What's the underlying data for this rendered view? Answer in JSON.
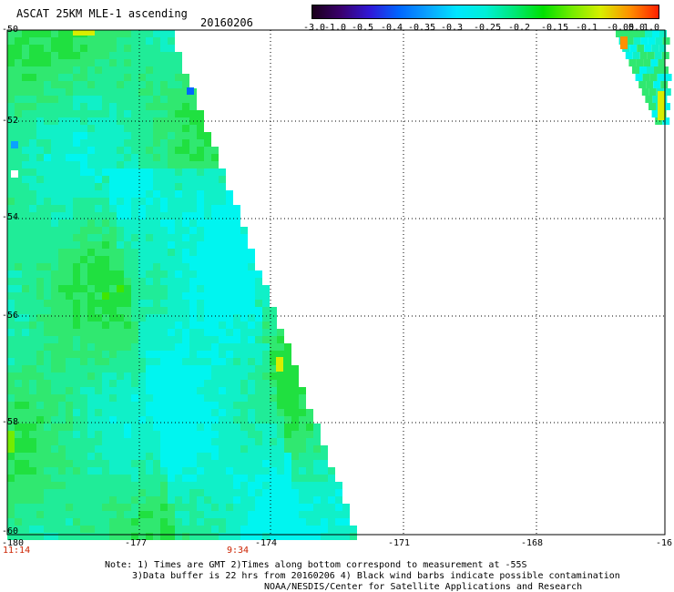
{
  "header": {
    "title": "ASCAT 25KM MLE-1 ascending",
    "date": "20160206"
  },
  "colorbar": {
    "labels": [
      "-3.0",
      "-1.0",
      "-0.5",
      "-0.4",
      "-0.35",
      "-0.3",
      "-0.25",
      "-0.2",
      "-0.15",
      "-0.1",
      "-0.05",
      "0.0",
      "1.0"
    ],
    "colors": [
      "#1a001a",
      "#3a006e",
      "#3018d8",
      "#0066ff",
      "#0aa2ff",
      "#00e6ff",
      "#00f0d8",
      "#00e878",
      "#00e000",
      "#74ec00",
      "#d8ee00",
      "#ff9000",
      "#ff2000"
    ]
  },
  "map": {
    "lat_labels": [
      "-50",
      "-52",
      "-54",
      "-56",
      "-58",
      "-60"
    ],
    "lon_labels": [
      "-180",
      "-177",
      "-174",
      "-171",
      "-168",
      "-16"
    ],
    "times": [
      "11:14",
      "9:34"
    ]
  },
  "notes": {
    "line1": "Note: 1) Times are GMT 2)Times along bottom correspond to measurement at -55S",
    "line2": "3)Data buffer is 22 hrs from 20160206 4) Black wind barbs indicate possible contamination",
    "line3": "NOAA/NESDIS/Center for Satellite Applications and Research"
  }
}
